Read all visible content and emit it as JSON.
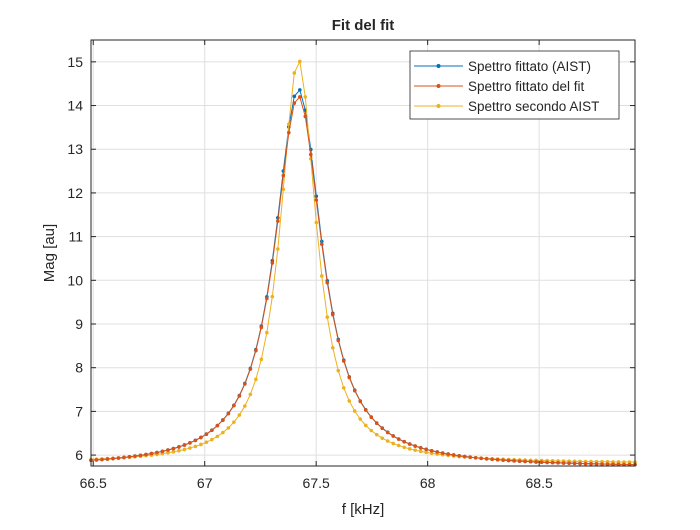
{
  "chart_data": {
    "type": "line",
    "title": "Fit del fit",
    "xlabel": "f [kHz]",
    "ylabel": "Mag [au]",
    "xlim": [
      66.49,
      68.93
    ],
    "ylim": [
      5.75,
      15.5
    ],
    "xticks": [
      66.5,
      67,
      67.5,
      68,
      68.5
    ],
    "xtick_labels": [
      "66.5",
      "67",
      "67.5",
      "68",
      "68.5"
    ],
    "yticks": [
      6,
      7,
      8,
      9,
      10,
      11,
      12,
      13,
      14,
      15
    ],
    "ytick_labels": [
      "6",
      "7",
      "8",
      "9",
      "10",
      "11",
      "12",
      "13",
      "14",
      "15"
    ],
    "grid": true,
    "legend_position": "top-right",
    "x_range": [
      66.49,
      68.93
    ],
    "series": [
      {
        "name": "Spettro fittato (AIST)",
        "color": "#0072BD",
        "model": {
          "baseline": 5.72,
          "peak_x": 67.42,
          "amplitude": 8.66,
          "gamma": 0.128
        }
      },
      {
        "name": "Spettro fittato del fit",
        "color": "#D95319",
        "model": {
          "baseline": 5.72,
          "peak_x": 67.42,
          "amplitude": 8.5,
          "gamma": 0.129
        }
      },
      {
        "name": "Spettro secondo AIST",
        "color": "#EDB120",
        "model": {
          "baseline": 5.8,
          "peak_x": 67.42,
          "amplitude": 9.25,
          "gamma": 0.098
        }
      }
    ]
  }
}
